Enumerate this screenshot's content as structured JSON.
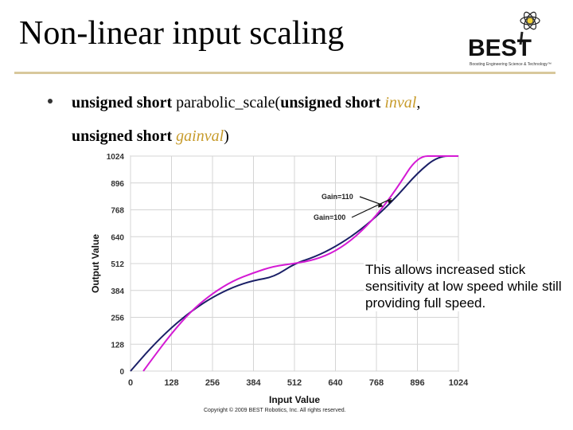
{
  "slide": {
    "title": "Non-linear input scaling",
    "logo_text": "BEST",
    "logo_tagline": "Boosting Engineering Science & Technology™"
  },
  "signature": {
    "line1_return_type": "unsigned short",
    "line1_function": " parabolic_scale(",
    "line1_param_type": "unsigned short",
    "line1_param_name": "inval",
    "line1_suffix": ",",
    "line2_param_type": "unsigned short",
    "line2_param_name": "gainval",
    "line2_suffix": ")"
  },
  "callout": {
    "text": "This allows increased stick sensitivity at low speed while still providing full speed."
  },
  "copyright": "Copyright © 2009 BEST Robotics, Inc. All rights reserved.",
  "colors": {
    "gain100": "#1a1f66",
    "gain110": "#d41ad4",
    "param": "#c79b2b",
    "grid": "#d4d4d4"
  },
  "chart_data": {
    "type": "line",
    "xlabel": "Input Value",
    "ylabel": "Output Value",
    "xlim": [
      0,
      1024
    ],
    "ylim": [
      0,
      1024
    ],
    "xticks": [
      0,
      128,
      256,
      384,
      512,
      640,
      768,
      896,
      1024
    ],
    "yticks": [
      0,
      128,
      256,
      384,
      512,
      640,
      768,
      896,
      1024
    ],
    "x_tick_labels": [
      "0",
      "128",
      "256",
      "384",
      "512",
      "640",
      "768",
      "896",
      "1024"
    ],
    "y_tick_labels": [
      "0",
      "128",
      "256",
      "384",
      "512",
      "640",
      "768",
      "896",
      "1024"
    ],
    "grid": true,
    "series": [
      {
        "name": "Gain=100",
        "x": [
          0,
          64,
          128,
          192,
          256,
          320,
          384,
          448,
          512,
          576,
          640,
          704,
          768,
          832,
          896,
          960,
          1024
        ],
        "y": [
          0,
          112,
          208,
          288,
          352,
          400,
          432,
          448,
          512,
          544,
          592,
          656,
          736,
          832,
          944,
          1024,
          1024
        ]
      },
      {
        "name": "Gain=110",
        "x": [
          40,
          64,
          128,
          192,
          256,
          320,
          384,
          448,
          512,
          576,
          640,
          704,
          768,
          832,
          896,
          960,
          1024
        ],
        "y": [
          0,
          50,
          180,
          290,
          370,
          430,
          468,
          500,
          512,
          530,
          570,
          640,
          740,
          870,
          1024,
          1024,
          1024
        ]
      }
    ],
    "annotations": [
      {
        "text": "Gain=110",
        "points_to_series": "Gain=110",
        "at_x": 790
      },
      {
        "text": "Gain=100",
        "points_to_series": "Gain=100",
        "at_x": 820
      }
    ]
  }
}
